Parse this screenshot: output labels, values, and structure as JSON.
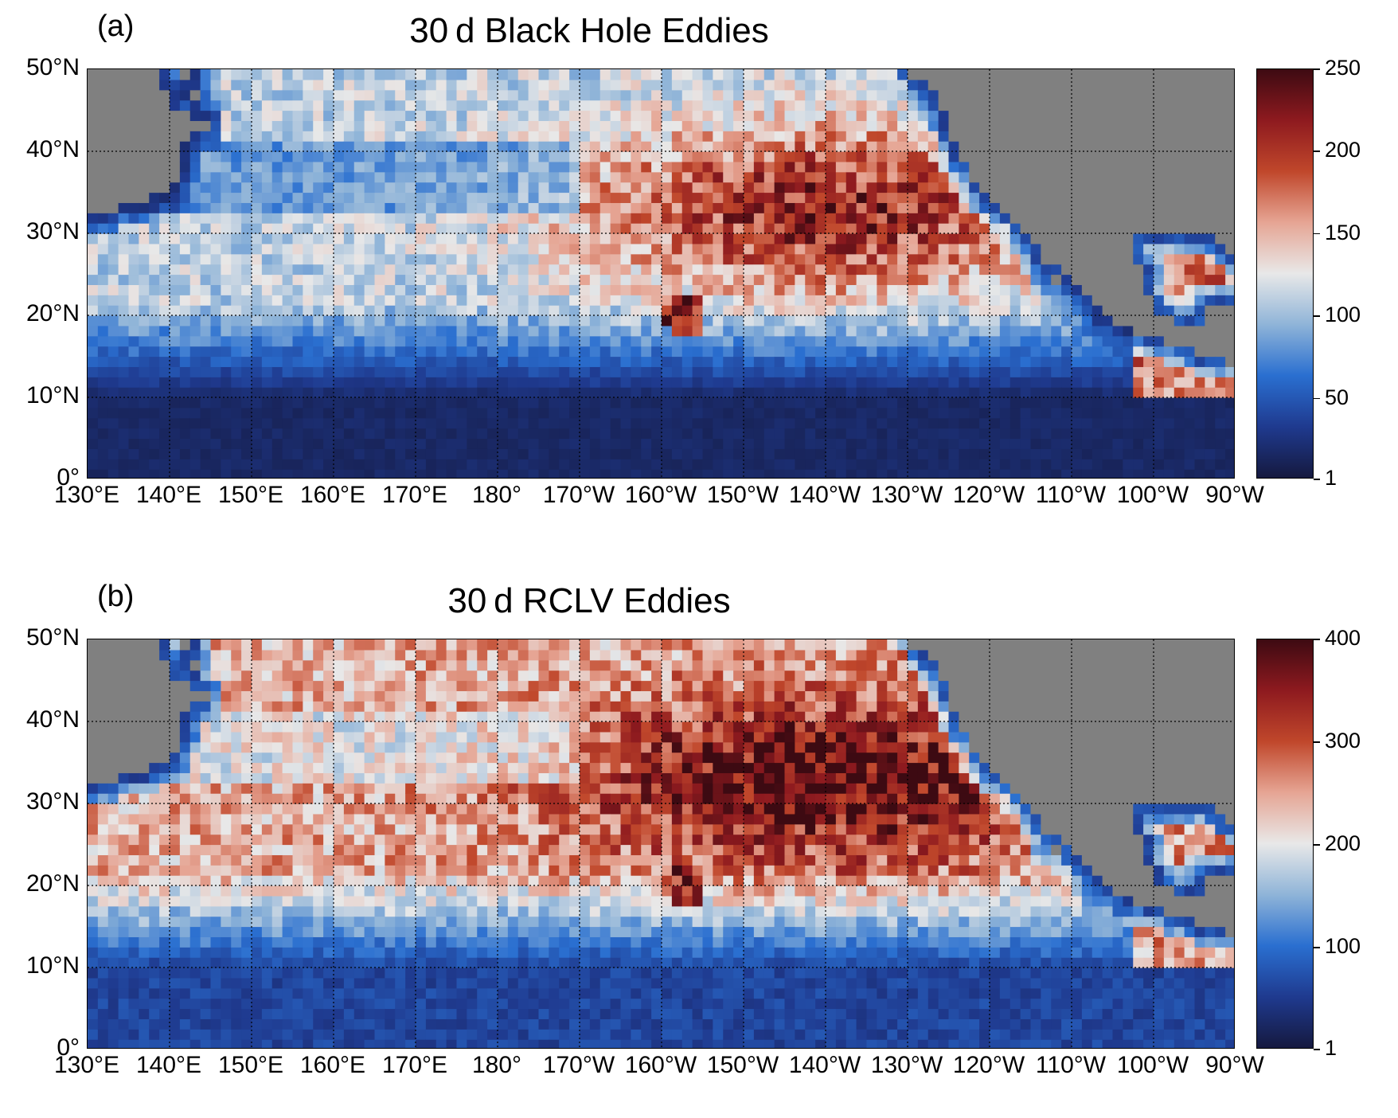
{
  "panels": [
    {
      "letter": "(a)",
      "title": "30 d Black Hole Eddies",
      "lat_ticks": [
        "50°N",
        "40°N",
        "30°N",
        "20°N",
        "10°N",
        "0°"
      ],
      "lon_ticks": [
        "130°E",
        "140°E",
        "150°E",
        "160°E",
        "170°E",
        "180°",
        "170°W",
        "160°W",
        "150°W",
        "140°W",
        "130°W",
        "120°W",
        "110°W",
        "100°W",
        "90°W"
      ],
      "colorbar": {
        "ticks": [
          "250",
          "200",
          "150",
          "100",
          "50",
          "1"
        ],
        "min": 1,
        "max": 250
      },
      "pattern": {
        "equatorial_band": 15,
        "subtropical_mid": 110,
        "northeast_max": 215,
        "westward_low_band": 45,
        "hawaii_hotspot": 220,
        "gulf_of_mexico": 190
      }
    },
    {
      "letter": "(b)",
      "title": "30 d RCLV Eddies",
      "lat_ticks": [
        "50°N",
        "40°N",
        "30°N",
        "20°N",
        "10°N",
        "0°"
      ],
      "lon_ticks": [
        "130°E",
        "140°E",
        "150°E",
        "160°E",
        "170°E",
        "180°",
        "170°W",
        "160°W",
        "150°W",
        "140°W",
        "130°W",
        "120°W",
        "110°W",
        "100°W",
        "90°W"
      ],
      "colorbar": {
        "ticks": [
          "400",
          "300",
          "200",
          "100",
          "1"
        ],
        "min": 1,
        "max": 400
      },
      "pattern": {
        "equatorial_band": 60,
        "subtropical_mid": 240,
        "northeast_max": 390,
        "westward_low_band": 150,
        "hawaii_hotspot": 340,
        "gulf_of_mexico": 280
      }
    }
  ],
  "colors": {
    "land": "#808080",
    "lake": "#4a90d9",
    "ramp": [
      "#15193f",
      "#1f3a8f",
      "#2a6fd0",
      "#8fb4d8",
      "#e8e8e8",
      "#e6a594",
      "#c0472b",
      "#8e1a1f",
      "#3d0a12"
    ]
  }
}
